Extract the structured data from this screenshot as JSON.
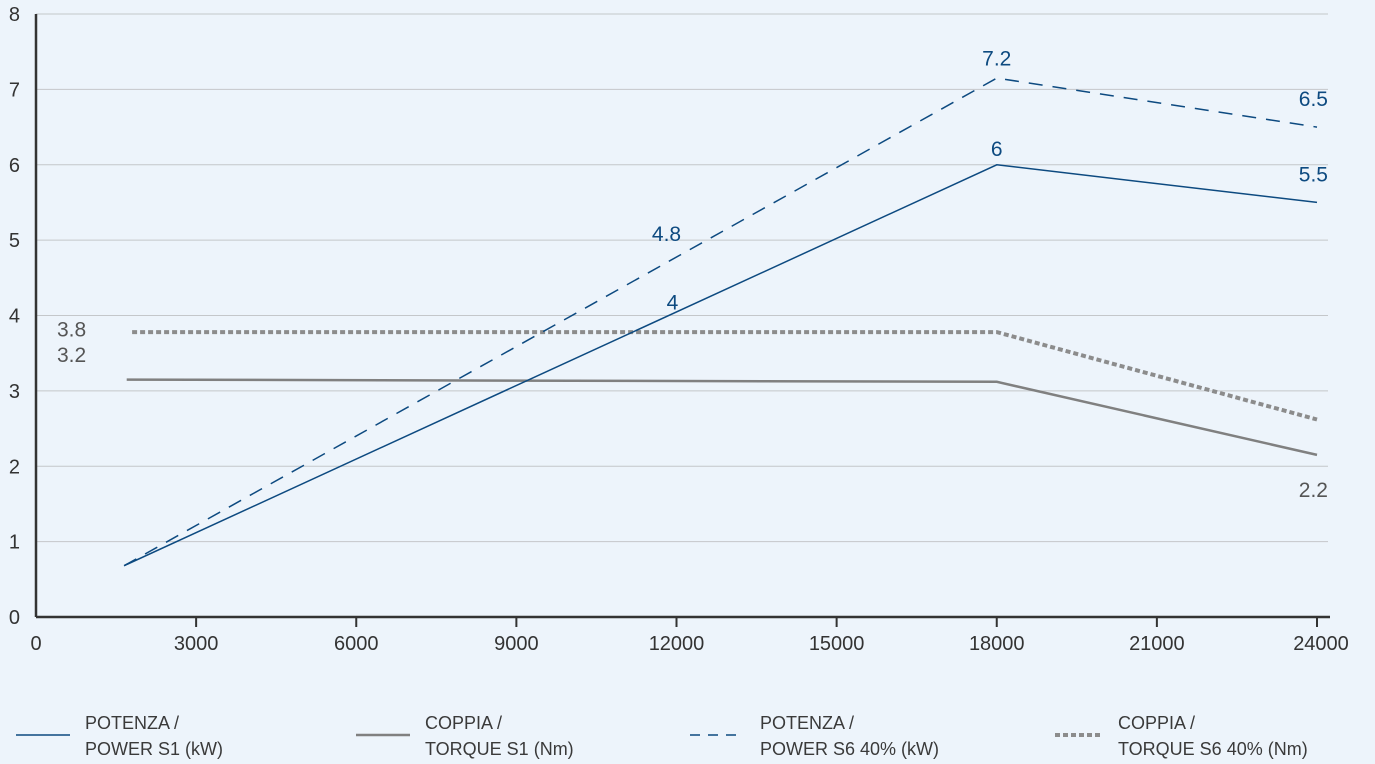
{
  "chart_data": {
    "type": "line",
    "title": "",
    "xlabel": "",
    "ylabel": "",
    "xlim": [
      0,
      24000
    ],
    "ylim": [
      0,
      8
    ],
    "x_ticks": [
      "0",
      "3000",
      "6000",
      "9000",
      "12000",
      "15000",
      "18000",
      "21000",
      "24000"
    ],
    "y_ticks": [
      "0",
      "1",
      "2",
      "3",
      "4",
      "5",
      "6",
      "7",
      "8"
    ],
    "grid": "horizontal",
    "legend_position": "bottom",
    "series": [
      {
        "key": "power_s1",
        "legend": [
          "POTENZA /",
          "POWER S1 (kW)"
        ],
        "color": "#0d4a80",
        "style": "solid",
        "points": [
          [
            1650,
            0.68
          ],
          [
            18000,
            6.0
          ],
          [
            24000,
            5.5
          ]
        ],
        "labels": [
          {
            "x": 12000,
            "y": 4.0,
            "text": "4"
          },
          {
            "x": 18000,
            "y": 6.0,
            "text": "6"
          },
          {
            "x": 24000,
            "y": 5.5,
            "text": "5.5"
          }
        ]
      },
      {
        "key": "torque_s1",
        "legend": [
          "COPPIA /",
          "TORQUE S1 (Nm)"
        ],
        "color": "#808080",
        "style": "solid-thick",
        "points": [
          [
            1700,
            3.15
          ],
          [
            18000,
            3.12
          ],
          [
            24000,
            2.15
          ]
        ],
        "labels": [
          {
            "x": 0,
            "y": 3.2,
            "text": "3.2"
          },
          {
            "x": 24000,
            "y": 2.2,
            "text": "2.2"
          }
        ]
      },
      {
        "key": "power_s6",
        "legend": [
          "POTENZA /",
          "POWER S6 40% (kW)"
        ],
        "color": "#0d4a80",
        "style": "dashed",
        "points": [
          [
            1650,
            0.68
          ],
          [
            18000,
            7.15
          ],
          [
            24000,
            6.5
          ]
        ],
        "labels": [
          {
            "x": 12000,
            "y": 4.8,
            "text": "4.8"
          },
          {
            "x": 18000,
            "y": 7.2,
            "text": "7.2"
          },
          {
            "x": 24000,
            "y": 6.5,
            "text": "6.5"
          }
        ]
      },
      {
        "key": "torque_s6",
        "legend": [
          "COPPIA /",
          "TORQUE S6 40% (Nm)"
        ],
        "color": "#8c8c8c",
        "style": "dotted-thick",
        "points": [
          [
            1800,
            3.78
          ],
          [
            18000,
            3.78
          ],
          [
            24000,
            2.62
          ]
        ],
        "labels": [
          {
            "x": 0,
            "y": 3.8,
            "text": "3.8"
          }
        ]
      }
    ]
  }
}
